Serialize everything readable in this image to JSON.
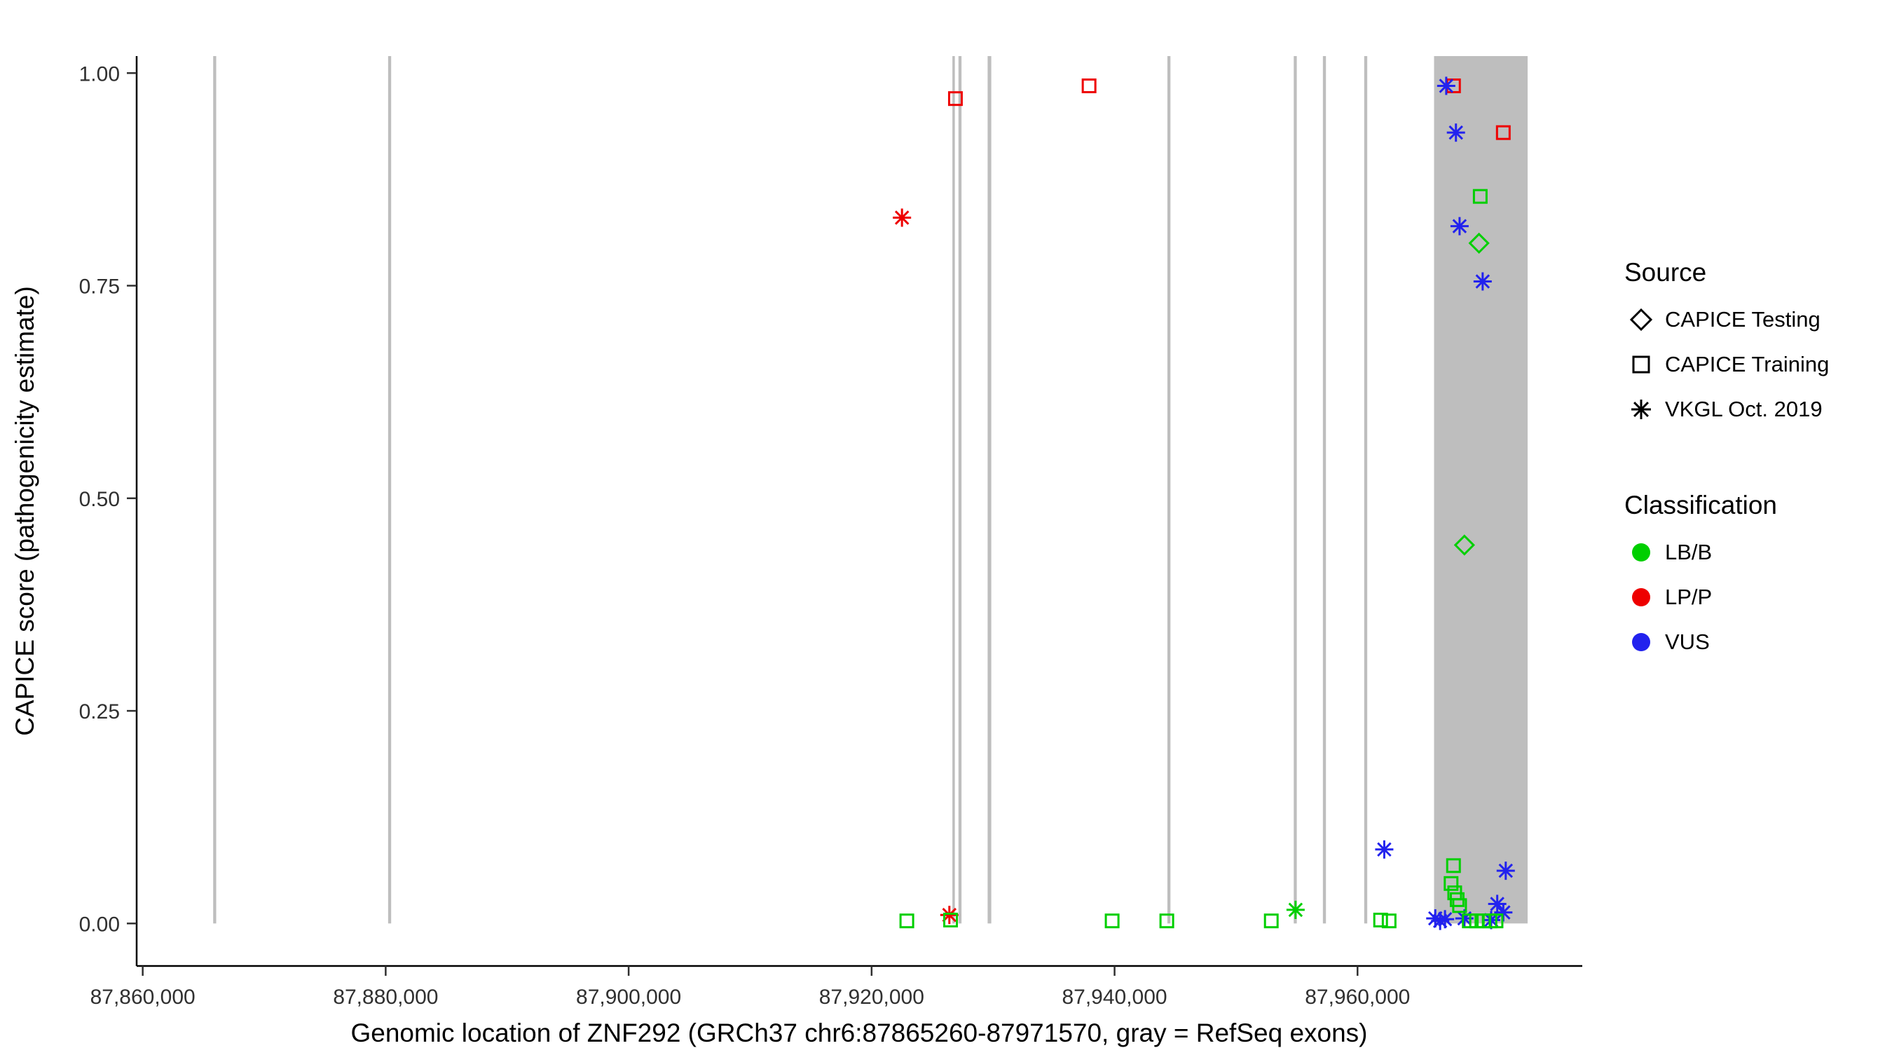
{
  "legend": {
    "source": {
      "title": "Source",
      "items": [
        {
          "label": "CAPICE Testing",
          "shape": "diamond"
        },
        {
          "label": "CAPICE Training",
          "shape": "square"
        },
        {
          "label": "VKGL Oct. 2019",
          "shape": "asterisk"
        }
      ]
    },
    "classification": {
      "title": "Classification",
      "items": [
        {
          "label": "LB/B",
          "color": "#00CF00"
        },
        {
          "label": "LP/P",
          "color": "#EE0000"
        },
        {
          "label": "VUS",
          "color": "#2222EE"
        }
      ]
    }
  },
  "chart_data": {
    "type": "scatter",
    "title": "",
    "xlabel": "Genomic location of ZNF292 (GRCh37 chr6:87865260-87971570, gray = RefSeq exons)",
    "ylabel": "CAPICE score (pathogenicity estimate)",
    "x_domain": [
      87859500,
      87978500
    ],
    "y_domain": [
      -0.05,
      1.02
    ],
    "grid": false,
    "legend_position": "right",
    "exon_color": "#BEBEBE",
    "x_ticks": [
      {
        "value": 87860000,
        "label": "87,860,000"
      },
      {
        "value": 87880000,
        "label": "87,880,000"
      },
      {
        "value": 87900000,
        "label": "87,900,000"
      },
      {
        "value": 87920000,
        "label": "87,920,000"
      },
      {
        "value": 87940000,
        "label": "87,940,000"
      },
      {
        "value": 87960000,
        "label": "87,960,000"
      }
    ],
    "y_ticks": [
      {
        "value": 0,
        "label": "0.00"
      },
      {
        "value": 0.25,
        "label": "0.25"
      },
      {
        "value": 0.5,
        "label": "0.50"
      },
      {
        "value": 0.75,
        "label": "0.75"
      },
      {
        "value": 1,
        "label": "1.00"
      }
    ],
    "exons": [
      {
        "start": 87865800,
        "end": 87866050
      },
      {
        "start": 87880200,
        "end": 87880450
      },
      {
        "start": 87926650,
        "end": 87926850
      },
      {
        "start": 87927150,
        "end": 87927400
      },
      {
        "start": 87929550,
        "end": 87929850
      },
      {
        "start": 87944350,
        "end": 87944600
      },
      {
        "start": 87954750,
        "end": 87955000
      },
      {
        "start": 87957150,
        "end": 87957400
      },
      {
        "start": 87960550,
        "end": 87960800
      },
      {
        "start": 87966300,
        "end": 87974000
      }
    ],
    "class_colors": {
      "LB/B": "#00CF00",
      "LP/P": "#EE0000",
      "VUS": "#2222EE"
    },
    "series": [
      {
        "name": "CAPICE Training / LP/P",
        "shape": "square",
        "classification": "LP/P",
        "points": [
          [
            87926900,
            0.97
          ],
          [
            87937900,
            0.985
          ],
          [
            87967900,
            0.985
          ],
          [
            87972000,
            0.93
          ]
        ]
      },
      {
        "name": "VKGL Oct. 2019 / LP/P",
        "shape": "asterisk",
        "classification": "LP/P",
        "points": [
          [
            87922500,
            0.83
          ],
          [
            87926400,
            0.01
          ]
        ]
      },
      {
        "name": "VKGL Oct. 2019 / VUS",
        "shape": "asterisk",
        "classification": "VUS",
        "points": [
          [
            87967300,
            0.985
          ],
          [
            87968100,
            0.93
          ],
          [
            87968400,
            0.82
          ],
          [
            87970300,
            0.755
          ],
          [
            87962200,
            0.087
          ],
          [
            87972200,
            0.062
          ],
          [
            87966400,
            0.006
          ],
          [
            87966800,
            0.003
          ],
          [
            87967200,
            0.005
          ],
          [
            87968800,
            0.006
          ],
          [
            87971500,
            0.023
          ],
          [
            87972000,
            0.013
          ],
          [
            87971000,
            0.004
          ]
        ]
      },
      {
        "name": "CAPICE Training / LB/B",
        "shape": "square",
        "classification": "LB/B",
        "points": [
          [
            87970100,
            0.855
          ],
          [
            87967900,
            0.068
          ],
          [
            87967700,
            0.047
          ],
          [
            87968000,
            0.036
          ],
          [
            87968200,
            0.028
          ],
          [
            87968400,
            0.021
          ],
          [
            87922900,
            0.003
          ],
          [
            87926500,
            0.004
          ],
          [
            87939800,
            0.003
          ],
          [
            87944300,
            0.003
          ],
          [
            87952900,
            0.003
          ],
          [
            87961900,
            0.004
          ],
          [
            87962600,
            0.003
          ],
          [
            87969200,
            0.003
          ],
          [
            87969800,
            0.003
          ],
          [
            87970400,
            0.003
          ],
          [
            87970900,
            0.003
          ],
          [
            87971400,
            0.003
          ]
        ]
      },
      {
        "name": "CAPICE Testing / LB/B",
        "shape": "diamond",
        "classification": "LB/B",
        "points": [
          [
            87970000,
            0.8
          ],
          [
            87968800,
            0.445
          ]
        ]
      },
      {
        "name": "VKGL Oct. 2019 / LB/B",
        "shape": "asterisk",
        "classification": "LB/B",
        "points": [
          [
            87954900,
            0.016
          ]
        ]
      }
    ]
  }
}
